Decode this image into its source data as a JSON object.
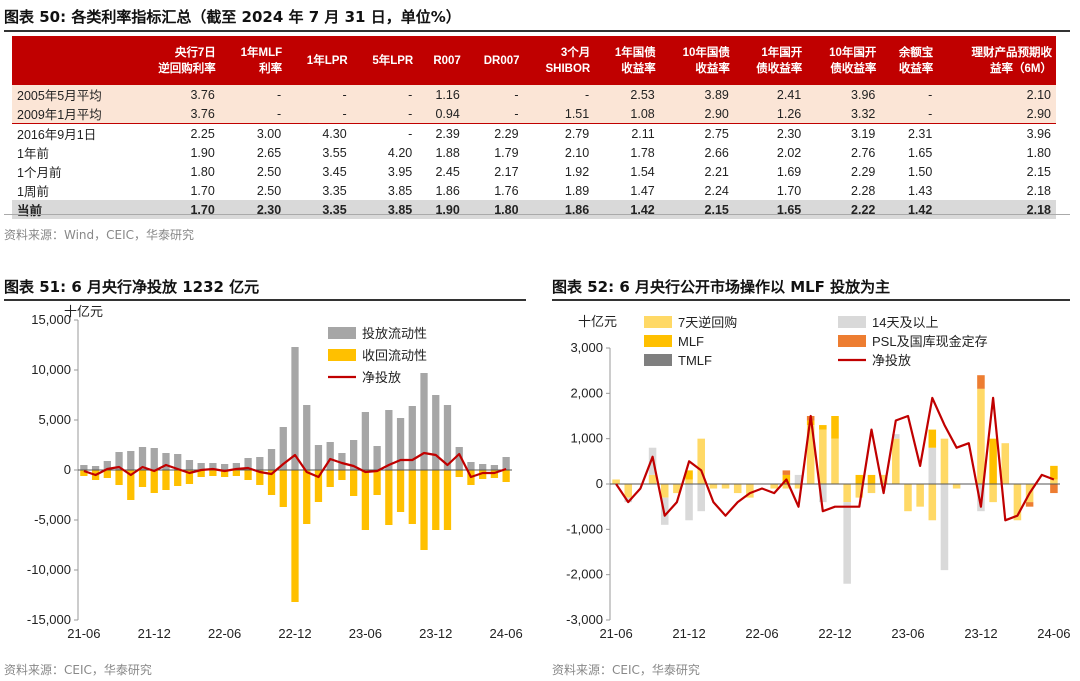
{
  "fig50": {
    "title": "图表 50:   各类利率指标汇总（截至 2024 年 7 月 31 日，单位%）",
    "headers": [
      "央行7日\n逆回购利率",
      "1年MLF\n利率",
      "1年LPR",
      "5年LPR",
      "R007",
      "DR007",
      "3个月\nSHIBOR",
      "1年国债\n收益率",
      "10年国债\n收益率",
      "1年国开\n债收益率",
      "10年国开\n债收益率",
      "余额宝\n收益率",
      "理财产品预期收\n益率（6M）"
    ],
    "rows": [
      {
        "label": "2005年5月平均",
        "values": [
          "3.76",
          "-",
          "-",
          "-",
          "1.16",
          "-",
          "-",
          "2.53",
          "3.89",
          "2.41",
          "3.96",
          "-",
          "2.10"
        ],
        "style": "pink"
      },
      {
        "label": "2009年1月平均",
        "values": [
          "3.76",
          "-",
          "-",
          "-",
          "0.94",
          "-",
          "1.51",
          "1.08",
          "2.90",
          "1.26",
          "3.32",
          "-",
          "2.90"
        ],
        "style": "pink"
      },
      {
        "label": "2016年9月1日",
        "values": [
          "2.25",
          "3.00",
          "4.30",
          "-",
          "2.39",
          "2.29",
          "2.79",
          "2.11",
          "2.75",
          "2.30",
          "3.19",
          "2.31",
          "3.96"
        ],
        "style": "sep"
      },
      {
        "label": "1年前",
        "values": [
          "1.90",
          "2.65",
          "3.55",
          "4.20",
          "1.88",
          "1.79",
          "2.10",
          "1.78",
          "2.66",
          "2.02",
          "2.76",
          "1.65",
          "1.80"
        ],
        "style": ""
      },
      {
        "label": "1个月前",
        "values": [
          "1.80",
          "2.50",
          "3.45",
          "3.95",
          "2.45",
          "2.17",
          "1.92",
          "1.54",
          "2.21",
          "1.69",
          "2.29",
          "1.50",
          "2.15"
        ],
        "style": ""
      },
      {
        "label": "1周前",
        "values": [
          "1.70",
          "2.50",
          "3.35",
          "3.85",
          "1.86",
          "1.76",
          "1.89",
          "1.47",
          "2.24",
          "1.70",
          "2.28",
          "1.43",
          "2.18"
        ],
        "style": ""
      },
      {
        "label": "当前",
        "values": [
          "1.70",
          "2.30",
          "3.35",
          "3.85",
          "1.90",
          "1.80",
          "1.86",
          "1.42",
          "2.15",
          "1.65",
          "2.22",
          "1.42",
          "2.18"
        ],
        "style": "cur"
      }
    ],
    "source": "资料来源：Wind，CEIC，华泰研究"
  },
  "fig51": {
    "title": "图表 51:   6 月央行净投放 1232 亿元",
    "source": "资料来源：CEIC，华泰研究"
  },
  "fig52": {
    "title": "图表 52:   6 月央行公开市场操作以 MLF 投放为主",
    "source": "资料来源：CEIC，华泰研究"
  },
  "chart_data": [
    {
      "type": "bar",
      "title": "6 月央行净投放 1232 亿元",
      "ylabel": "十亿元",
      "ylim": [
        -15000,
        15000
      ],
      "yticks": [
        "15,000",
        "10,000",
        "5,000",
        "0",
        "-5,000",
        "-10,000",
        "-15,000"
      ],
      "xticks": [
        "21-06",
        "21-12",
        "22-06",
        "22-12",
        "23-06",
        "23-12",
        "24-06"
      ],
      "legend": [
        "投放流动性",
        "收回流动性",
        "净投放"
      ],
      "legend_position": "top-right",
      "colors": {
        "inject": "#a6a6a6",
        "withdraw": "#ffc000",
        "net": "#c00000"
      },
      "x": [
        "21-06",
        "21-07",
        "21-08",
        "21-09",
        "21-10",
        "21-11",
        "21-12",
        "22-01",
        "22-02",
        "22-03",
        "22-04",
        "22-05",
        "22-06",
        "22-07",
        "22-08",
        "22-09",
        "22-10",
        "22-11",
        "22-12",
        "23-01",
        "23-02",
        "23-03",
        "23-04",
        "23-05",
        "23-06",
        "23-07",
        "23-08",
        "23-09",
        "23-10",
        "23-11",
        "23-12",
        "24-01",
        "24-02",
        "24-03",
        "24-04",
        "24-05",
        "24-06"
      ],
      "series": [
        {
          "name": "投放流动性",
          "values": [
            500,
            400,
            900,
            1800,
            1900,
            2300,
            2200,
            1700,
            1600,
            1000,
            700,
            700,
            600,
            700,
            1200,
            1300,
            2100,
            4300,
            12300,
            6500,
            2500,
            2800,
            1700,
            3000,
            5800,
            2400,
            6000,
            5200,
            6400,
            9700,
            7500,
            6500,
            2300,
            800,
            600,
            500,
            1300
          ]
        },
        {
          "name": "收回流动性",
          "values": [
            -600,
            -1000,
            -800,
            -1500,
            -3000,
            -1700,
            -2300,
            -2000,
            -1600,
            -1400,
            -700,
            -600,
            -700,
            -600,
            -1000,
            -1500,
            -2500,
            -3700,
            -13200,
            -5400,
            -3200,
            -1700,
            -1000,
            -2600,
            -6000,
            -2500,
            -5500,
            -4200,
            -5400,
            -8000,
            -6000,
            -6000,
            -700,
            -1500,
            -900,
            -800,
            -1200
          ]
        },
        {
          "name": "净投放",
          "values": [
            -100,
            -500,
            100,
            300,
            -500,
            300,
            -100,
            500,
            100,
            -300,
            0,
            100,
            -100,
            100,
            200,
            -200,
            -400,
            600,
            1500,
            -200,
            -700,
            1100,
            700,
            400,
            -200,
            -100,
            500,
            1000,
            1000,
            1700,
            1500,
            500,
            1600,
            -700,
            -300,
            -300,
            100
          ]
        }
      ]
    },
    {
      "type": "bar",
      "title": "6 月央行公开市场操作以 MLF 投放为主",
      "ylabel": "十亿元",
      "ylim": [
        -3000,
        3000
      ],
      "yticks": [
        "3,000",
        "2,000",
        "1,000",
        "0",
        "-1,000",
        "-2,000",
        "-3,000"
      ],
      "xticks": [
        "21-06",
        "21-12",
        "22-06",
        "22-12",
        "23-06",
        "23-12",
        "24-06"
      ],
      "legend": [
        "7天逆回购",
        "14天及以上",
        "MLF",
        "PSL及国库现金定存",
        "TMLF",
        "净投放"
      ],
      "legend_position": "top",
      "colors": {
        "rr7": "#ffd966",
        "rr14": "#d9d9d9",
        "mlf": "#ffc000",
        "psl": "#ed7d31",
        "tmlf": "#7f7f7f",
        "net": "#c00000"
      },
      "x": [
        "21-06",
        "21-07",
        "21-08",
        "21-09",
        "21-10",
        "21-11",
        "21-12",
        "22-01",
        "22-02",
        "22-03",
        "22-04",
        "22-05",
        "22-06",
        "22-07",
        "22-08",
        "22-09",
        "22-10",
        "22-11",
        "22-12",
        "23-01",
        "23-02",
        "23-03",
        "23-04",
        "23-05",
        "23-06",
        "23-07",
        "23-08",
        "23-09",
        "23-10",
        "23-11",
        "23-12",
        "24-01",
        "24-02",
        "24-03",
        "24-04",
        "24-05",
        "24-06"
      ],
      "series": [
        {
          "name": "7天逆回购",
          "values": [
            100,
            -300,
            0,
            200,
            -300,
            -200,
            100,
            1000,
            -100,
            -100,
            -200,
            -300,
            0,
            -100,
            -100,
            -100,
            1300,
            1200,
            1000,
            -400,
            -300,
            -200,
            200,
            1000,
            -600,
            -500,
            -800,
            1000,
            -100,
            0,
            2100,
            -400,
            900,
            -800,
            -400,
            0,
            100
          ]
        },
        {
          "name": "14天及以上",
          "values": [
            0,
            -100,
            0,
            600,
            -600,
            0,
            -800,
            -600,
            0,
            0,
            0,
            0,
            0,
            0,
            0,
            200,
            0,
            -400,
            0,
            -1800,
            0,
            0,
            0,
            100,
            0,
            0,
            800,
            -1900,
            0,
            0,
            -600,
            0,
            0,
            0,
            0,
            0,
            0
          ]
        },
        {
          "name": "MLF",
          "values": [
            0,
            0,
            0,
            0,
            0,
            0,
            200,
            0,
            0,
            0,
            0,
            0,
            0,
            0,
            200,
            0,
            100,
            100,
            500,
            0,
            200,
            200,
            0,
            0,
            0,
            0,
            400,
            0,
            0,
            0,
            0,
            1000,
            0,
            0,
            0,
            0,
            300
          ]
        },
        {
          "name": "PSL及国库现金定存",
          "values": [
            0,
            0,
            0,
            0,
            0,
            0,
            0,
            0,
            0,
            0,
            0,
            0,
            0,
            0,
            100,
            0,
            100,
            0,
            0,
            0,
            0,
            0,
            0,
            0,
            0,
            0,
            0,
            0,
            0,
            0,
            300,
            0,
            0,
            0,
            -100,
            0,
            -200
          ]
        },
        {
          "name": "TMLF",
          "values": [
            0,
            0,
            0,
            0,
            0,
            0,
            0,
            0,
            0,
            0,
            0,
            0,
            0,
            0,
            0,
            0,
            0,
            0,
            0,
            0,
            0,
            0,
            0,
            0,
            0,
            0,
            0,
            0,
            0,
            0,
            0,
            0,
            0,
            0,
            0,
            0,
            0
          ]
        },
        {
          "name": "净投放",
          "values": [
            0,
            -400,
            -100,
            600,
            -700,
            -400,
            500,
            300,
            -400,
            -700,
            -400,
            -200,
            -100,
            -200,
            100,
            -500,
            1500,
            -600,
            -500,
            -500,
            -500,
            1200,
            -200,
            1400,
            1500,
            400,
            1900,
            1300,
            800,
            900,
            -500,
            1900,
            -800,
            -700,
            -200,
            200,
            100
          ]
        }
      ]
    }
  ]
}
